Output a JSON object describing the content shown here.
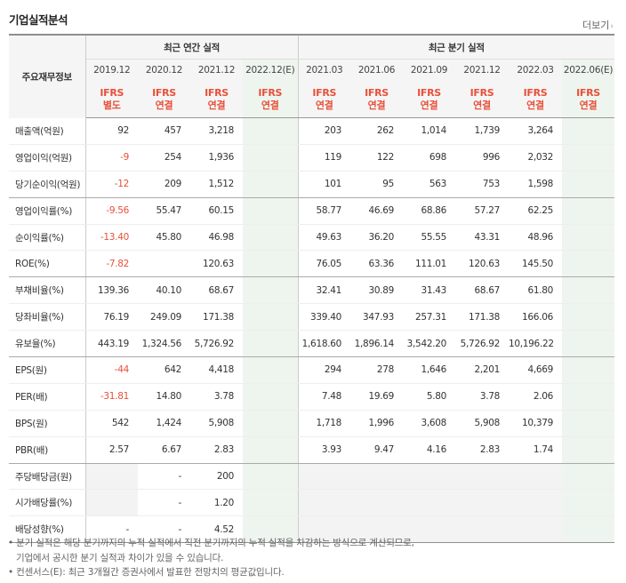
{
  "header": {
    "title": "기업실적분석",
    "more_label": "더보기",
    "more_icon": "chevron-right-icon"
  },
  "table": {
    "row_header": "주요재무정보",
    "group_annual": "최근 연간 실적",
    "group_quarter": "최근 분기 실적",
    "annual_periods": [
      "2019.12",
      "2020.12",
      "2021.12",
      "2022.12(E)"
    ],
    "quarter_periods": [
      "2021.03",
      "2021.06",
      "2021.09",
      "2021.12",
      "2022.03",
      "2022.06(E)"
    ],
    "annual_basis": [
      [
        "IFRS",
        "별도"
      ],
      [
        "IFRS",
        "연결"
      ],
      [
        "IFRS",
        "연결"
      ],
      [
        "IFRS",
        "연결"
      ]
    ],
    "quarter_basis": [
      [
        "IFRS",
        "연결"
      ],
      [
        "IFRS",
        "연결"
      ],
      [
        "IFRS",
        "연결"
      ],
      [
        "IFRS",
        "연결"
      ],
      [
        "IFRS",
        "연결"
      ],
      [
        "IFRS",
        "연결"
      ]
    ],
    "rows": [
      {
        "label": "매출액(억원)",
        "annual": [
          "92",
          "457",
          "3,218",
          ""
        ],
        "quarter": [
          "203",
          "262",
          "1,014",
          "1,739",
          "3,264",
          ""
        ]
      },
      {
        "label": "영업이익(억원)",
        "annual": [
          "-9",
          "254",
          "1,936",
          ""
        ],
        "quarter": [
          "119",
          "122",
          "698",
          "996",
          "2,032",
          ""
        ]
      },
      {
        "label": "당기순이익(억원)",
        "annual": [
          "-12",
          "209",
          "1,512",
          ""
        ],
        "quarter": [
          "101",
          "95",
          "563",
          "753",
          "1,598",
          ""
        ]
      },
      {
        "label": "영업이익률(%)",
        "annual": [
          "-9.56",
          "55.47",
          "60.15",
          ""
        ],
        "quarter": [
          "58.77",
          "46.69",
          "68.86",
          "57.27",
          "62.25",
          ""
        ]
      },
      {
        "label": "순이익률(%)",
        "annual": [
          "-13.40",
          "45.80",
          "46.98",
          ""
        ],
        "quarter": [
          "49.63",
          "36.20",
          "55.55",
          "43.31",
          "48.96",
          ""
        ]
      },
      {
        "label": "ROE(%)",
        "annual": [
          "-7.82",
          "",
          "120.63",
          ""
        ],
        "quarter": [
          "76.05",
          "63.36",
          "111.01",
          "120.63",
          "145.50",
          ""
        ]
      },
      {
        "label": "부채비율(%)",
        "annual": [
          "139.36",
          "40.10",
          "68.67",
          ""
        ],
        "quarter": [
          "32.41",
          "30.89",
          "31.43",
          "68.67",
          "61.80",
          ""
        ]
      },
      {
        "label": "당좌비율(%)",
        "annual": [
          "76.19",
          "249.09",
          "171.38",
          ""
        ],
        "quarter": [
          "339.40",
          "347.93",
          "257.31",
          "171.38",
          "166.06",
          ""
        ]
      },
      {
        "label": "유보율(%)",
        "annual": [
          "443.19",
          "1,324.56",
          "5,726.92",
          ""
        ],
        "quarter": [
          "1,618.60",
          "1,896.14",
          "3,542.20",
          "5,726.92",
          "10,196.22",
          ""
        ]
      },
      {
        "label": "EPS(원)",
        "annual": [
          "-44",
          "642",
          "4,418",
          ""
        ],
        "quarter": [
          "294",
          "278",
          "1,646",
          "2,201",
          "4,669",
          ""
        ]
      },
      {
        "label": "PER(배)",
        "annual": [
          "-31.81",
          "14.80",
          "3.78",
          ""
        ],
        "quarter": [
          "7.48",
          "19.69",
          "5.80",
          "3.78",
          "2.06",
          ""
        ]
      },
      {
        "label": "BPS(원)",
        "annual": [
          "542",
          "1,424",
          "5,908",
          ""
        ],
        "quarter": [
          "1,718",
          "1,996",
          "3,608",
          "5,908",
          "10,379",
          ""
        ]
      },
      {
        "label": "PBR(배)",
        "annual": [
          "2.57",
          "6.67",
          "2.83",
          ""
        ],
        "quarter": [
          "3.93",
          "9.47",
          "4.16",
          "2.83",
          "1.74",
          ""
        ]
      },
      {
        "label": "주당배당금(원)",
        "annual": [
          "",
          "-",
          "200",
          ""
        ],
        "quarter": [
          "",
          "",
          "",
          "",
          "",
          ""
        ]
      },
      {
        "label": "시가배당률(%)",
        "annual": [
          "",
          "-",
          "1.20",
          ""
        ],
        "quarter": [
          "",
          "",
          "",
          "",
          "",
          ""
        ]
      },
      {
        "label": "배당성향(%)",
        "annual": [
          "-",
          "-",
          "4.52",
          ""
        ],
        "quarter": [
          "",
          "",
          "",
          "",
          "",
          ""
        ]
      }
    ]
  },
  "notes": {
    "line1": "분기 실적은 해당 분기까지의 누적 실적에서 직전 분기까지의 누적 실적을 차감하는 방식으로 계산되므로,",
    "line2": "기업에서 공시한 분기 실적과 차이가 있을 수 있습니다.",
    "line3": "컨센서스(E): 최근 3개월간 증권사에서 발표한 전망치의 평균값입니다."
  }
}
